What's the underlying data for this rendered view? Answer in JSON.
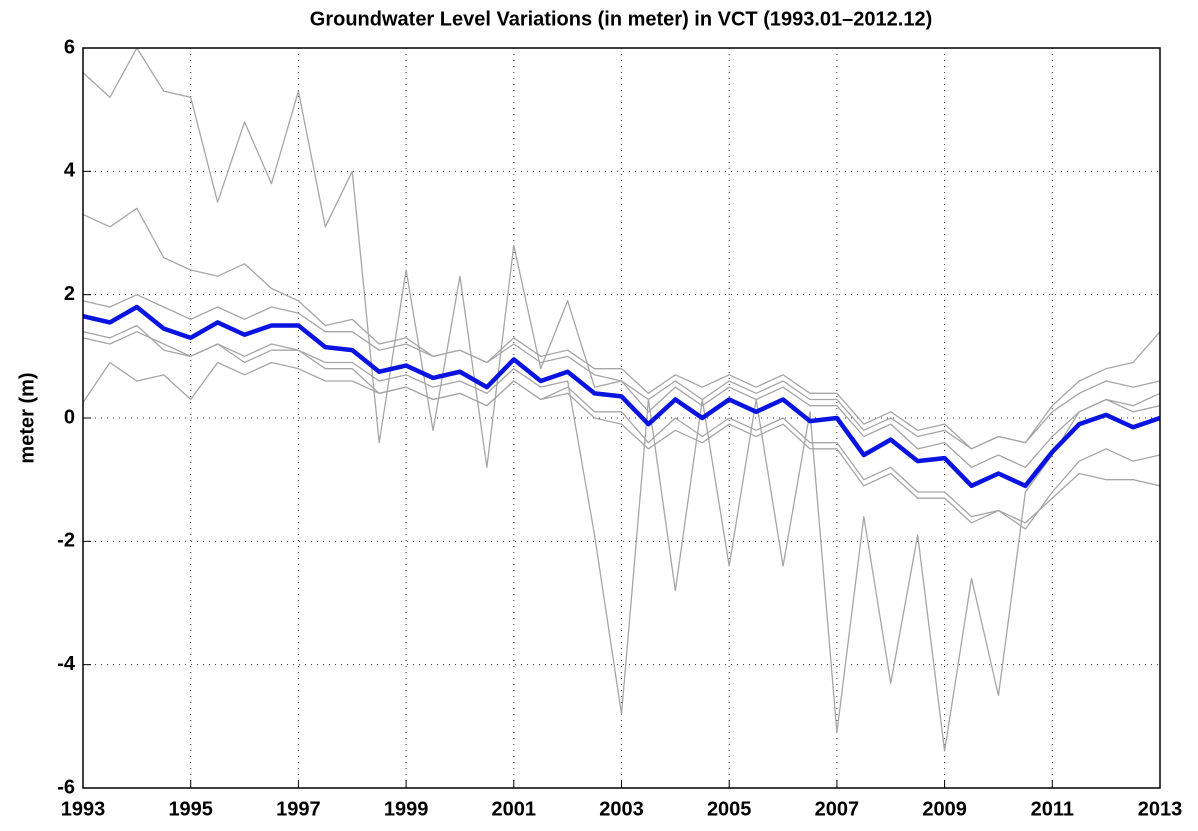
{
  "chart_data": {
    "type": "line",
    "title": "Groundwater Level Variations (in meter) in VCT (1993.01–2012.12)",
    "y_label": "meter (m)",
    "x": [
      1993,
      1993.5,
      1994,
      1994.5,
      1995,
      1995.5,
      1996,
      1996.5,
      1997,
      1997.5,
      1998,
      1998.5,
      1999,
      1999.5,
      2000,
      2000.5,
      2001,
      2001.5,
      2002,
      2002.5,
      2003,
      2003.5,
      2004,
      2004.5,
      2005,
      2005.5,
      2006,
      2006.5,
      2007,
      2007.5,
      2008,
      2008.5,
      2009,
      2009.5,
      2010,
      2010.5,
      2011,
      2011.5,
      2012,
      2012.5,
      2013
    ],
    "xlim": [
      1993,
      2013
    ],
    "xticks": [
      1993,
      1995,
      1997,
      1999,
      2001,
      2003,
      2005,
      2007,
      2009,
      2011,
      2013
    ],
    "ylim": [
      -6,
      6
    ],
    "yticks": [
      -6,
      -4,
      -2,
      0,
      2,
      4,
      6
    ],
    "grid": true,
    "series": [
      {
        "color": "#a6a6a6",
        "width": 1.3,
        "values": [
          5.6,
          5.2,
          6.0,
          5.3,
          5.2,
          3.5,
          4.8,
          3.8,
          5.3,
          3.1,
          4.0,
          -0.4,
          2.4,
          -0.2,
          2.3,
          -0.8,
          2.8,
          0.8,
          1.9,
          0.5,
          0.6,
          0.1,
          0.5,
          0.2,
          0.5,
          0.3,
          0.5,
          0.2,
          0.2,
          -0.3,
          -0.1,
          -0.5,
          -0.4,
          -0.8,
          -0.6,
          -0.8,
          -0.3,
          0.1,
          0.3,
          0.1,
          0.2
        ]
      },
      {
        "color": "#a6a6a6",
        "width": 1.3,
        "values": [
          1.3,
          1.2,
          1.4,
          1.2,
          1.0,
          1.2,
          1.0,
          1.2,
          1.1,
          0.9,
          0.9,
          0.6,
          0.7,
          0.5,
          0.6,
          0.4,
          0.8,
          0.5,
          0.6,
          -1.9,
          -4.8,
          0.3,
          -2.8,
          0.3,
          -2.4,
          0.3,
          -2.4,
          0.1,
          -5.1,
          -1.6,
          -4.3,
          -1.9,
          -5.4,
          -2.6,
          -4.5,
          -1.2,
          -0.6,
          0.1,
          0.3,
          0.2,
          0.4
        ]
      },
      {
        "color": "#a6a6a6",
        "width": 1.3,
        "values": [
          3.3,
          3.1,
          3.4,
          2.6,
          2.4,
          2.3,
          2.5,
          2.1,
          1.9,
          1.5,
          1.6,
          1.2,
          1.3,
          1.0,
          1.1,
          0.9,
          1.2,
          0.9,
          1.0,
          0.7,
          0.6,
          0.3,
          0.6,
          0.3,
          0.6,
          0.4,
          0.6,
          0.3,
          0.3,
          -0.2,
          0.0,
          -0.3,
          -0.2,
          -0.5,
          -0.3,
          -0.4,
          0.1,
          0.4,
          0.6,
          0.5,
          0.6
        ]
      },
      {
        "color": "#a6a6a6",
        "width": 1.3,
        "values": [
          0.25,
          0.9,
          0.6,
          0.7,
          0.3,
          0.9,
          0.7,
          0.9,
          0.8,
          0.6,
          0.6,
          0.4,
          0.5,
          0.3,
          0.4,
          0.2,
          0.6,
          0.3,
          0.5,
          0.1,
          0.1,
          -0.4,
          0.0,
          -0.3,
          0.0,
          -0.2,
          0.0,
          -0.4,
          -0.4,
          -1.0,
          -0.8,
          -1.2,
          -1.2,
          -1.6,
          -1.5,
          -1.7,
          -1.3,
          -0.9,
          -1.0,
          -1.0,
          -1.1
        ]
      },
      {
        "color": "#a6a6a6",
        "width": 1.3,
        "values": [
          1.9,
          1.8,
          2.0,
          1.8,
          1.6,
          1.8,
          1.6,
          1.8,
          1.7,
          1.4,
          1.4,
          1.1,
          1.2,
          1.0,
          1.1,
          0.9,
          1.3,
          1.0,
          1.1,
          0.8,
          0.8,
          0.4,
          0.7,
          0.5,
          0.7,
          0.5,
          0.7,
          0.4,
          0.4,
          -0.1,
          0.1,
          -0.2,
          -0.1,
          -0.5,
          -0.3,
          -0.4,
          0.2,
          0.6,
          0.8,
          0.9,
          1.4
        ]
      },
      {
        "color": "#a6a6a6",
        "width": 1.3,
        "values": [
          1.4,
          1.3,
          1.5,
          1.1,
          1.0,
          1.2,
          0.9,
          1.1,
          1.1,
          0.8,
          0.8,
          0.4,
          0.5,
          0.3,
          0.4,
          0.2,
          0.6,
          0.3,
          0.4,
          0.0,
          -0.1,
          -0.5,
          -0.2,
          -0.4,
          -0.1,
          -0.3,
          -0.1,
          -0.5,
          -0.5,
          -1.1,
          -0.9,
          -1.3,
          -1.3,
          -1.7,
          -1.5,
          -1.8,
          -1.2,
          -0.7,
          -0.5,
          -0.7,
          -0.6
        ]
      },
      {
        "color": "#0a14e0",
        "width": 4.5,
        "values": [
          1.65,
          1.55,
          1.8,
          1.45,
          1.3,
          1.55,
          1.35,
          1.5,
          1.5,
          1.15,
          1.1,
          0.75,
          0.85,
          0.65,
          0.75,
          0.5,
          0.95,
          0.6,
          0.75,
          0.4,
          0.35,
          -0.1,
          0.3,
          0.0,
          0.3,
          0.1,
          0.3,
          -0.05,
          0.0,
          -0.6,
          -0.35,
          -0.7,
          -0.65,
          -1.1,
          -0.9,
          -1.1,
          -0.55,
          -0.1,
          0.05,
          -0.15,
          0.0
        ]
      }
    ]
  }
}
